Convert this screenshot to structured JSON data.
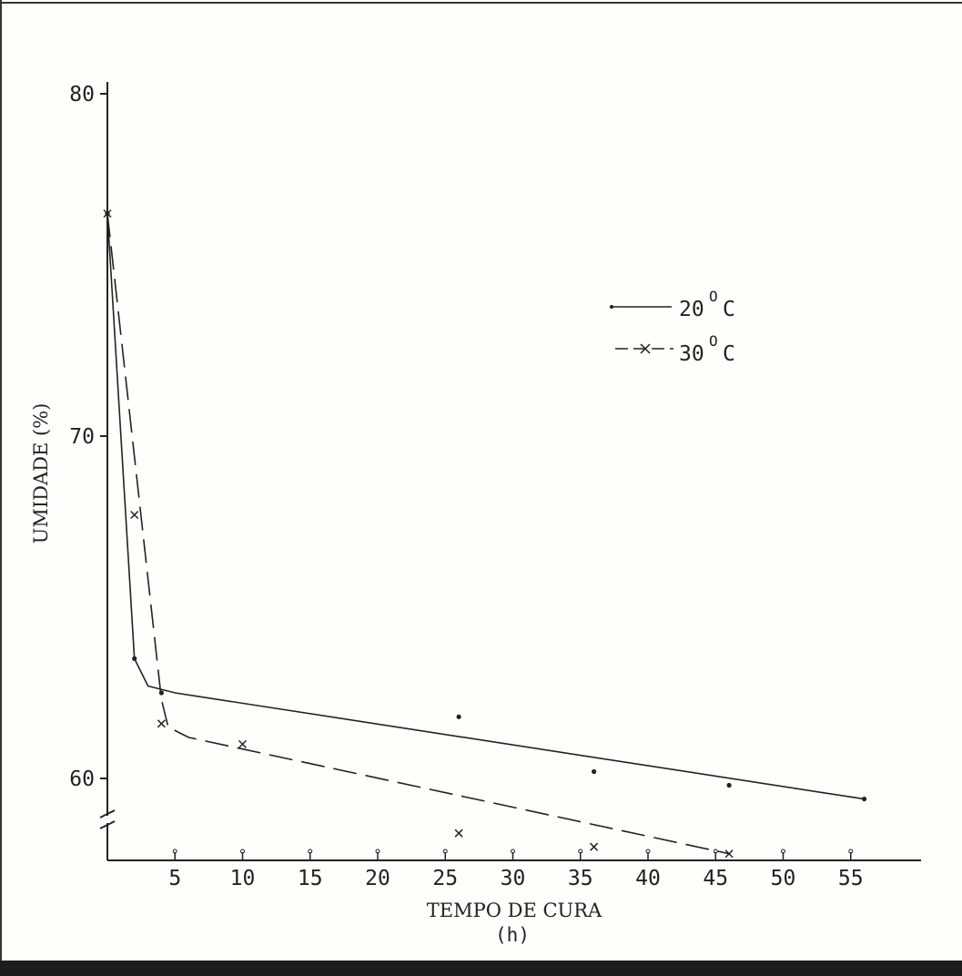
{
  "chart_data": {
    "type": "line",
    "title": "",
    "xlabel": "TEMPO DE CURA",
    "xunit": "(h)",
    "ylabel": "UMIDADE (%)",
    "xlim": [
      0,
      60
    ],
    "ylim": [
      57,
      80
    ],
    "y_axis_break": true,
    "x_ticks": [
      "5",
      "10",
      "15",
      "20",
      "25",
      "30",
      "35",
      "40",
      "45",
      "50",
      "55"
    ],
    "y_ticks": [
      "60",
      "70",
      "80"
    ],
    "legend_position": "upper-right",
    "grid": false,
    "series": [
      {
        "name": "20°C",
        "marker": "dot",
        "line_style": "solid",
        "points": [
          {
            "x": 0,
            "y": 76.5
          },
          {
            "x": 2,
            "y": 63.5
          },
          {
            "x": 4,
            "y": 62.5
          },
          {
            "x": 26,
            "y": 61.8
          },
          {
            "x": 36,
            "y": 60.2
          },
          {
            "x": 46,
            "y": 59.8
          },
          {
            "x": 56,
            "y": 59.4
          }
        ],
        "fit": [
          {
            "x": 0,
            "y": 76.5
          },
          {
            "x": 2,
            "y": 63.5
          },
          {
            "x": 3,
            "y": 62.7
          },
          {
            "x": 5,
            "y": 62.5
          },
          {
            "x": 56,
            "y": 59.4
          }
        ]
      },
      {
        "name": "30°C",
        "marker": "x",
        "line_style": "dashed",
        "points": [
          {
            "x": 0,
            "y": 76.5
          },
          {
            "x": 2,
            "y": 67.7
          },
          {
            "x": 4,
            "y": 61.6
          },
          {
            "x": 10,
            "y": 61.0
          },
          {
            "x": 26,
            "y": 58.4
          },
          {
            "x": 36,
            "y": 58.0
          },
          {
            "x": 46,
            "y": 57.8
          }
        ],
        "fit": [
          {
            "x": 0,
            "y": 76.5
          },
          {
            "x": 4,
            "y": 62.3
          },
          {
            "x": 4.5,
            "y": 61.5
          },
          {
            "x": 6,
            "y": 61.2
          },
          {
            "x": 46,
            "y": 57.8
          }
        ]
      }
    ]
  },
  "legend": {
    "items": [
      {
        "label": "20",
        "unit": "C",
        "deg": "O"
      },
      {
        "label": "30",
        "unit": "C",
        "deg": "O"
      }
    ]
  },
  "colors": {
    "ink": "#222222",
    "paper": "#fefefa",
    "border_strip": "#1d1d1d"
  }
}
